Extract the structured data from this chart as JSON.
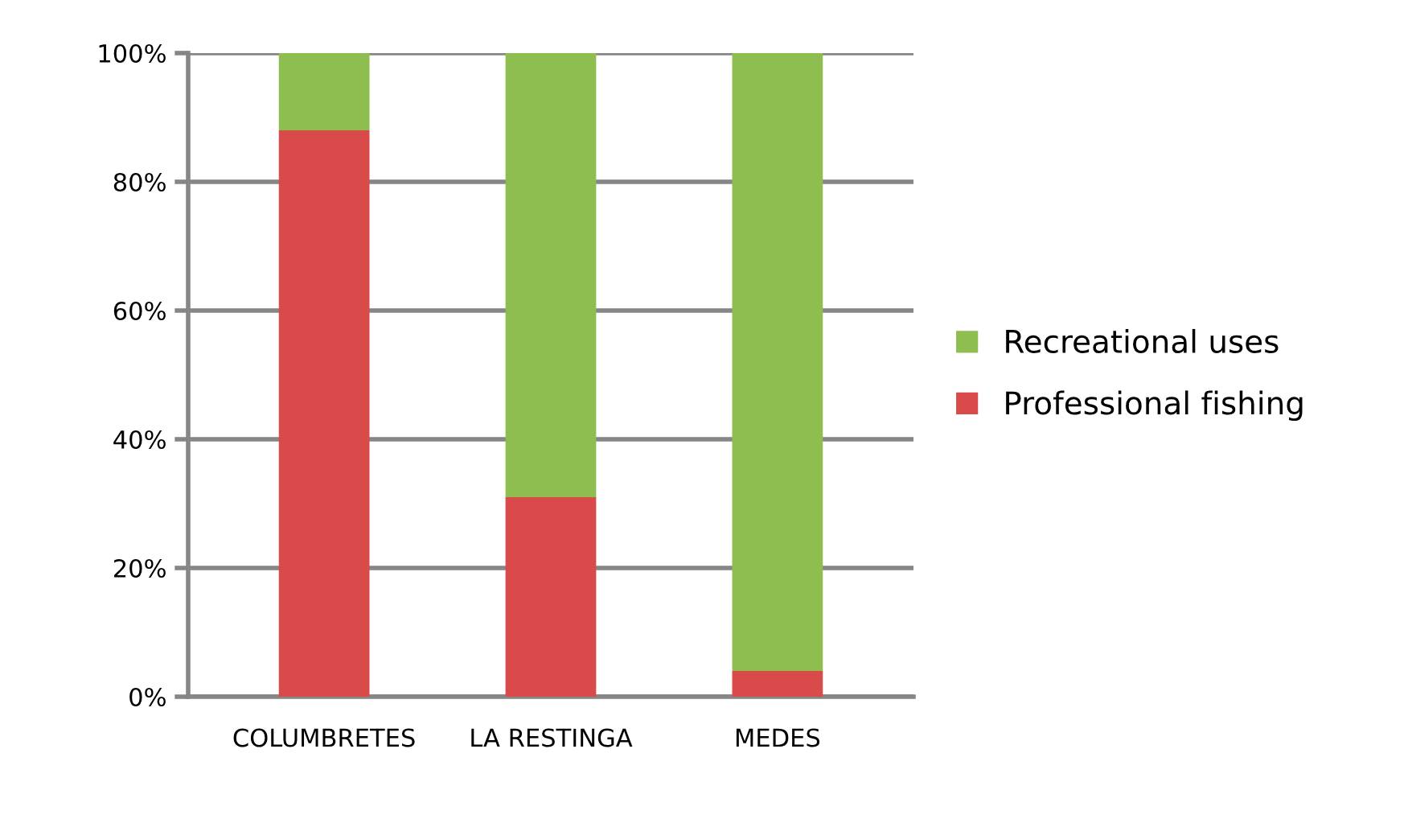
{
  "chart_data": {
    "type": "bar",
    "stacked": true,
    "categories": [
      "COLUMBRETES",
      "LA RESTINGA",
      "MEDES"
    ],
    "series": [
      {
        "name": "Professional fishing",
        "color": "#d94a4a",
        "values": [
          88,
          31,
          4
        ]
      },
      {
        "name": "Recreational uses",
        "color": "#8ebd50",
        "values": [
          12,
          69,
          96
        ]
      }
    ],
    "ylim": [
      0,
      100
    ],
    "yticks": [
      {
        "value": 0,
        "label": "0%"
      },
      {
        "value": 20,
        "label": "20%"
      },
      {
        "value": 40,
        "label": "40%"
      },
      {
        "value": 60,
        "label": "60%"
      },
      {
        "value": 80,
        "label": "80%"
      },
      {
        "value": 100,
        "label": "100%"
      }
    ],
    "grid": "y",
    "legend": "right"
  }
}
